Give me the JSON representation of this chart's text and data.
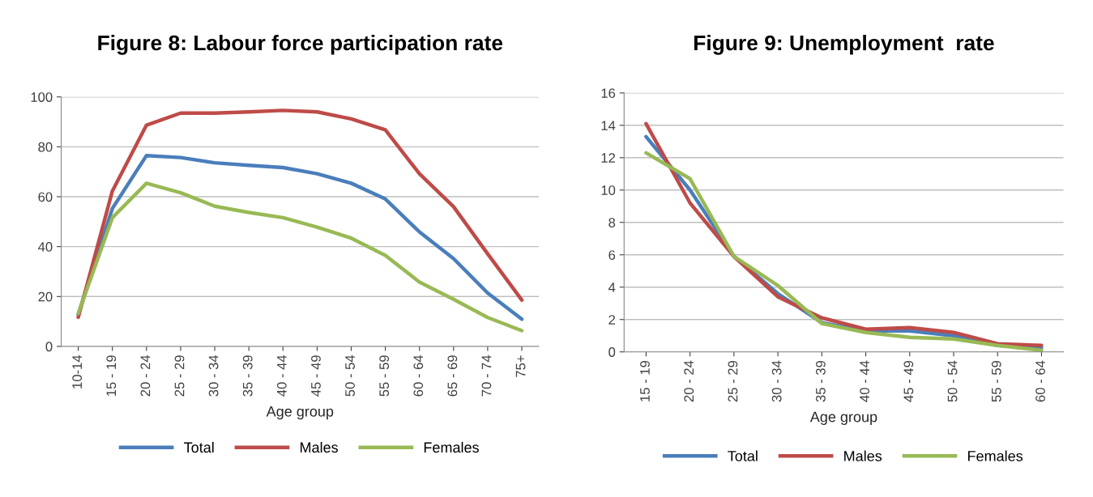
{
  "chart_data": [
    {
      "type": "line",
      "title": "Figure 8: Labour force participation rate",
      "xlabel": "Age group",
      "categories": [
        "10-14",
        "15 - 19",
        "20 - 24",
        "25 - 29",
        "30 - 34",
        "35 - 39",
        "40 - 44",
        "45 - 49",
        "50 - 54",
        "55 - 59",
        "60 - 64",
        "65 - 69",
        "70 - 74",
        "75+"
      ],
      "series": [
        {
          "name": "Total",
          "color": "#4a7ebb",
          "values": [
            12.8,
            55.3,
            76.5,
            75.7,
            73.6,
            72.6,
            71.7,
            69.2,
            65.4,
            59.1,
            45.9,
            35.2,
            21.4,
            10.9
          ]
        },
        {
          "name": "Males",
          "color": "#be4b48",
          "values": [
            11.7,
            62.3,
            88.7,
            93.5,
            93.5,
            94.0,
            94.6,
            94.0,
            91.2,
            86.8,
            69.2,
            56.0,
            37.1,
            18.6
          ]
        },
        {
          "name": "Females",
          "color": "#98b954",
          "values": [
            13.2,
            51.6,
            65.4,
            61.6,
            56.2,
            53.7,
            51.6,
            47.8,
            43.4,
            36.5,
            25.8,
            18.9,
            11.6,
            6.3
          ]
        }
      ],
      "ylim": [
        0,
        100
      ],
      "yticks": [
        0,
        20,
        40,
        60,
        80,
        100
      ],
      "grid": "y",
      "legend": "bottom",
      "marker": "none",
      "line_style": "solid"
    },
    {
      "type": "line",
      "title": "Figure 9: Unemployment  rate",
      "xlabel": "Age group",
      "categories": [
        "15 - 19",
        "20 - 24",
        "25 - 29",
        "30 - 34",
        "35 - 39",
        "40 - 44",
        "45 - 49",
        "50 - 54",
        "55 - 59",
        "60 - 64"
      ],
      "series": [
        {
          "name": "Total",
          "color": "#4a7ebb",
          "values": [
            13.3,
            10.0,
            5.9,
            3.6,
            1.8,
            1.3,
            1.3,
            1.0,
            0.4,
            0.25
          ]
        },
        {
          "name": "Males",
          "color": "#be4b48",
          "values": [
            14.1,
            9.2,
            5.9,
            3.4,
            2.1,
            1.4,
            1.5,
            1.2,
            0.5,
            0.4
          ]
        },
        {
          "name": "Females",
          "color": "#98b954",
          "values": [
            12.3,
            10.7,
            5.9,
            4.1,
            1.75,
            1.2,
            0.9,
            0.8,
            0.4,
            0.1
          ]
        }
      ],
      "ylim": [
        0,
        16
      ],
      "yticks": [
        0,
        2,
        4,
        6,
        8,
        10,
        12,
        14,
        16
      ],
      "grid": "y",
      "legend": "bottom",
      "marker": "none",
      "line_style": "solid"
    }
  ]
}
